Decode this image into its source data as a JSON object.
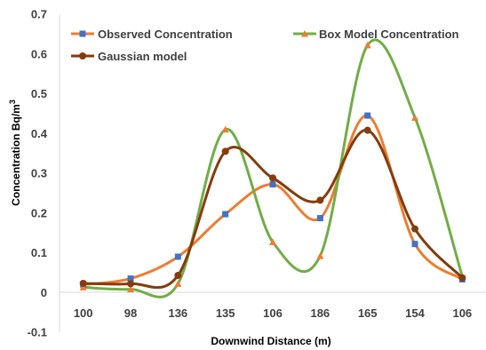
{
  "chart_data": {
    "type": "line",
    "title": "",
    "xlabel": "Downwind Distance (m)",
    "ylabel": "Concentration Bq/m",
    "ylabel_superscript": "3",
    "ylim": [
      -0.1,
      0.7
    ],
    "yticks": [
      -0.1,
      0,
      0.1,
      0.2,
      0.3,
      0.4,
      0.5,
      0.6,
      0.7
    ],
    "ytick_labels": [
      "-0.1",
      "0",
      "0.1",
      "0.2",
      "0.3",
      "0.4",
      "0.5",
      "0.6",
      "0.7"
    ],
    "categories": [
      "100",
      "98",
      "136",
      "135",
      "106",
      "186",
      "165",
      "154",
      "106"
    ],
    "grid": false,
    "legend_placement": "top",
    "series": [
      {
        "name": "Observed Concentration",
        "color": "#ED7D31",
        "marker": "square",
        "marker_color": "#4472C4",
        "values": [
          0.02,
          0.035,
          0.09,
          0.197,
          0.272,
          0.187,
          0.445,
          0.122,
          0.033
        ]
      },
      {
        "name": "Box Model Concentration",
        "color": "#70AD47",
        "marker": "triangle",
        "marker_color": "#ED7D31",
        "values": [
          0.013,
          0.008,
          0.022,
          0.41,
          0.127,
          0.092,
          0.622,
          0.44,
          0.04
        ]
      },
      {
        "name": "Gaussian model",
        "color": "#843C0C",
        "marker": "circle",
        "marker_color": "#843C0C",
        "values": [
          0.023,
          0.022,
          0.043,
          0.355,
          0.288,
          0.232,
          0.408,
          0.16,
          0.037
        ]
      }
    ]
  }
}
